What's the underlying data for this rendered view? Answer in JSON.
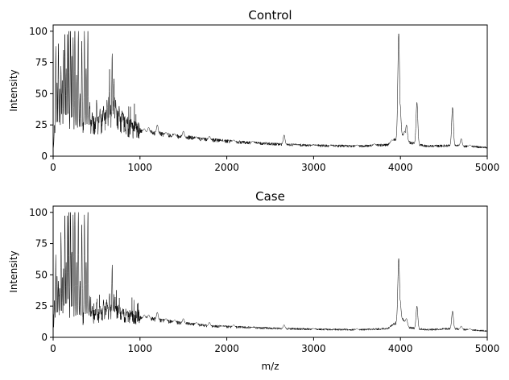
{
  "chart_data": [
    {
      "type": "line",
      "title": "Control",
      "xlabel": "",
      "ylabel": "Intensity",
      "xlim": [
        0,
        5000
      ],
      "ylim": [
        0,
        105
      ],
      "xticks": [
        0,
        1000,
        2000,
        3000,
        4000,
        5000
      ],
      "yticks": [
        0,
        25,
        50,
        75,
        100
      ],
      "grid": false,
      "baseline": [
        [
          0,
          6
        ],
        [
          40,
          18
        ],
        [
          150,
          15
        ],
        [
          300,
          20
        ],
        [
          500,
          25
        ],
        [
          650,
          30
        ],
        [
          750,
          28
        ],
        [
          900,
          22
        ],
        [
          1100,
          19
        ],
        [
          1400,
          16
        ],
        [
          1800,
          13
        ],
        [
          2200,
          11
        ],
        [
          2600,
          9.5
        ],
        [
          3000,
          8.5
        ],
        [
          3500,
          8
        ],
        [
          3850,
          9
        ],
        [
          3960,
          14
        ],
        [
          4000,
          18
        ],
        [
          4100,
          11
        ],
        [
          4300,
          8
        ],
        [
          4600,
          8.5
        ],
        [
          5000,
          7
        ]
      ],
      "peaks": [
        [
          15,
          25
        ],
        [
          30,
          88
        ],
        [
          45,
          60
        ],
        [
          60,
          90
        ],
        [
          75,
          55
        ],
        [
          90,
          72
        ],
        [
          105,
          62
        ],
        [
          120,
          85
        ],
        [
          135,
          100
        ],
        [
          150,
          70
        ],
        [
          165,
          100
        ],
        [
          180,
          100
        ],
        [
          200,
          100
        ],
        [
          215,
          82
        ],
        [
          230,
          95
        ],
        [
          250,
          100
        ],
        [
          270,
          65
        ],
        [
          290,
          100
        ],
        [
          310,
          50
        ],
        [
          330,
          92
        ],
        [
          360,
          100
        ],
        [
          380,
          70
        ],
        [
          400,
          100
        ],
        [
          420,
          40
        ],
        [
          450,
          35
        ],
        [
          500,
          45
        ],
        [
          540,
          38
        ],
        [
          580,
          40
        ],
        [
          620,
          45
        ],
        [
          650,
          55
        ],
        [
          680,
          82
        ],
        [
          700,
          62
        ],
        [
          720,
          45
        ],
        [
          760,
          40
        ],
        [
          800,
          35
        ],
        [
          850,
          30
        ],
        [
          900,
          28
        ],
        [
          950,
          25
        ],
        [
          1050,
          22
        ],
        [
          1100,
          23
        ],
        [
          1200,
          25
        ],
        [
          1300,
          19
        ],
        [
          1400,
          18
        ],
        [
          1500,
          20
        ],
        [
          1650,
          15
        ],
        [
          1800,
          16
        ],
        [
          1950,
          12
        ],
        [
          2080,
          13
        ],
        [
          2300,
          12
        ],
        [
          2350,
          10
        ],
        [
          2660,
          17
        ],
        [
          2800,
          9
        ],
        [
          3000,
          9
        ],
        [
          3200,
          8.5
        ],
        [
          3500,
          9
        ],
        [
          3700,
          10
        ],
        [
          3900,
          13
        ],
        [
          3980,
          98
        ],
        [
          3995,
          42
        ],
        [
          4050,
          20
        ],
        [
          4070,
          25
        ],
        [
          4190,
          43
        ],
        [
          4600,
          39
        ],
        [
          4700,
          14
        ],
        [
          4800,
          9
        ]
      ]
    },
    {
      "type": "line",
      "title": "Case",
      "xlabel": "m/z",
      "ylabel": "Intensity",
      "xlim": [
        0,
        5000
      ],
      "ylim": [
        0,
        105
      ],
      "xticks": [
        0,
        1000,
        2000,
        3000,
        4000,
        5000
      ],
      "yticks": [
        0,
        25,
        50,
        75,
        100
      ],
      "grid": false,
      "baseline": [
        [
          0,
          5
        ],
        [
          40,
          12
        ],
        [
          150,
          11
        ],
        [
          300,
          14
        ],
        [
          500,
          17
        ],
        [
          650,
          20
        ],
        [
          750,
          19
        ],
        [
          900,
          16
        ],
        [
          1100,
          15
        ],
        [
          1400,
          12
        ],
        [
          1800,
          9
        ],
        [
          2200,
          8
        ],
        [
          2600,
          7
        ],
        [
          3000,
          6.5
        ],
        [
          3500,
          6
        ],
        [
          3850,
          7
        ],
        [
          3960,
          12
        ],
        [
          4000,
          16
        ],
        [
          4100,
          8
        ],
        [
          4300,
          6
        ],
        [
          4600,
          7
        ],
        [
          5000,
          5
        ]
      ],
      "peaks": [
        [
          15,
          30
        ],
        [
          30,
          62
        ],
        [
          45,
          50
        ],
        [
          60,
          45
        ],
        [
          75,
          40
        ],
        [
          90,
          84
        ],
        [
          105,
          48
        ],
        [
          120,
          55
        ],
        [
          135,
          100
        ],
        [
          150,
          60
        ],
        [
          165,
          100
        ],
        [
          180,
          100
        ],
        [
          200,
          100
        ],
        [
          215,
          70
        ],
        [
          230,
          98
        ],
        [
          250,
          100
        ],
        [
          270,
          60
        ],
        [
          290,
          100
        ],
        [
          310,
          45
        ],
        [
          330,
          90
        ],
        [
          360,
          98
        ],
        [
          380,
          60
        ],
        [
          400,
          100
        ],
        [
          420,
          30
        ],
        [
          450,
          25
        ],
        [
          500,
          28
        ],
        [
          540,
          25
        ],
        [
          580,
          30
        ],
        [
          620,
          28
        ],
        [
          650,
          35
        ],
        [
          680,
          58
        ],
        [
          700,
          30
        ],
        [
          720,
          25
        ],
        [
          760,
          24
        ],
        [
          800,
          22
        ],
        [
          850,
          20
        ],
        [
          900,
          20
        ],
        [
          1050,
          18
        ],
        [
          1100,
          18
        ],
        [
          1200,
          20
        ],
        [
          1300,
          15
        ],
        [
          1400,
          14
        ],
        [
          1500,
          15
        ],
        [
          1650,
          12
        ],
        [
          1800,
          12
        ],
        [
          1950,
          9
        ],
        [
          2080,
          10
        ],
        [
          2300,
          8
        ],
        [
          2660,
          10
        ],
        [
          3000,
          7
        ],
        [
          3500,
          7
        ],
        [
          3900,
          9
        ],
        [
          3980,
          63
        ],
        [
          3995,
          30
        ],
        [
          4050,
          12
        ],
        [
          4070,
          15
        ],
        [
          4190,
          25
        ],
        [
          4600,
          21
        ],
        [
          4700,
          9
        ],
        [
          4800,
          7
        ]
      ]
    }
  ]
}
